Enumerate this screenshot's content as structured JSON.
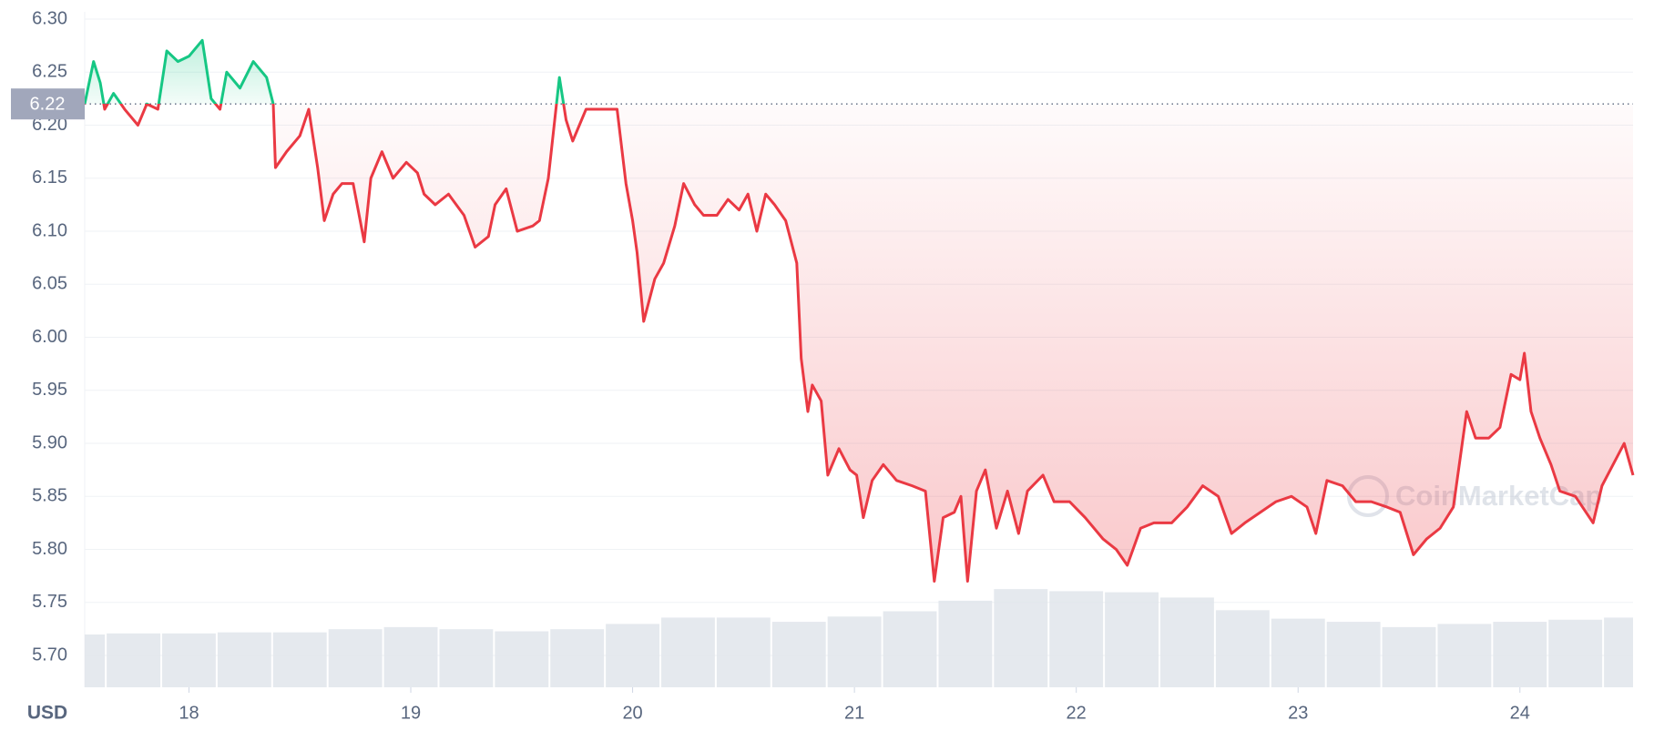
{
  "chart_data": {
    "type": "line",
    "y_label": "USD",
    "watermark": "CoinMarketCap",
    "baseline": 6.22,
    "color_up": "#16c784",
    "color_down": "#ea3943",
    "grid": true,
    "xlim": [
      17.53,
      24.51
    ],
    "xticks": [
      18,
      19,
      20,
      21,
      22,
      23,
      24
    ],
    "ylim": [
      5.67,
      6.3
    ],
    "yticks": [
      {
        "value": 5.7,
        "label": "5.70"
      },
      5.75,
      {
        "value": 5.8,
        "label": "5.80"
      },
      5.85,
      {
        "value": 5.9,
        "label": "5.90"
      },
      5.95,
      {
        "value": 6,
        "label": "6.00"
      },
      6.05,
      {
        "value": 6.1,
        "label": "6.10"
      },
      6.15,
      {
        "value": 6.2,
        "label": "6.20"
      },
      6.25,
      {
        "value": 6.3,
        "label": "6.30"
      }
    ],
    "x": [
      17.53,
      17.57,
      17.6,
      17.62,
      17.66,
      17.71,
      17.77,
      17.81,
      17.86,
      17.9,
      17.95,
      18.0,
      18.06,
      18.1,
      18.14,
      18.17,
      18.23,
      18.29,
      18.35,
      18.38,
      18.39,
      18.44,
      18.5,
      18.54,
      18.58,
      18.61,
      18.65,
      18.69,
      18.74,
      18.79,
      18.82,
      18.87,
      18.92,
      18.98,
      19.03,
      19.06,
      19.11,
      19.17,
      19.24,
      19.29,
      19.35,
      19.38,
      19.43,
      19.48,
      19.55,
      19.58,
      19.62,
      19.67,
      19.7,
      19.73,
      19.79,
      19.86,
      19.93,
      19.97,
      20.0,
      20.02,
      20.05,
      20.1,
      20.14,
      20.19,
      20.23,
      20.28,
      20.32,
      20.38,
      20.43,
      20.48,
      20.52,
      20.56,
      20.6,
      20.64,
      20.69,
      20.74,
      20.76,
      20.79,
      20.81,
      20.85,
      20.88,
      20.93,
      20.98,
      21.01,
      21.04,
      21.08,
      21.13,
      21.19,
      21.26,
      21.32,
      21.36,
      21.4,
      21.45,
      21.48,
      21.51,
      21.55,
      21.59,
      21.64,
      21.69,
      21.74,
      21.78,
      21.85,
      21.9,
      21.97,
      22.04,
      22.12,
      22.18,
      22.23,
      22.29,
      22.35,
      22.43,
      22.5,
      22.57,
      22.64,
      22.7,
      22.76,
      22.83,
      22.9,
      22.97,
      23.04,
      23.08,
      23.13,
      23.2,
      23.26,
      23.33,
      23.4,
      23.46,
      23.52,
      23.58,
      23.64,
      23.7,
      23.76,
      23.8,
      23.86,
      23.91,
      23.96,
      24.0,
      24.02,
      24.05,
      24.09,
      24.14,
      24.18,
      24.25,
      24.33,
      24.37,
      24.42,
      24.47,
      24.51
    ],
    "values": [
      6.22,
      6.26,
      6.24,
      6.215,
      6.23,
      6.215,
      6.2,
      6.22,
      6.215,
      6.27,
      6.26,
      6.265,
      6.28,
      6.225,
      6.215,
      6.25,
      6.235,
      6.26,
      6.245,
      6.22,
      6.16,
      6.175,
      6.19,
      6.215,
      6.16,
      6.11,
      6.135,
      6.145,
      6.145,
      6.09,
      6.15,
      6.175,
      6.15,
      6.165,
      6.155,
      6.135,
      6.125,
      6.135,
      6.115,
      6.085,
      6.095,
      6.125,
      6.14,
      6.1,
      6.105,
      6.11,
      6.15,
      6.245,
      6.205,
      6.185,
      6.215,
      6.215,
      6.215,
      6.145,
      6.11,
      6.08,
      6.015,
      6.055,
      6.07,
      6.105,
      6.145,
      6.125,
      6.115,
      6.115,
      6.13,
      6.12,
      6.135,
      6.1,
      6.135,
      6.125,
      6.11,
      6.07,
      5.98,
      5.93,
      5.955,
      5.94,
      5.87,
      5.895,
      5.875,
      5.87,
      5.83,
      5.865,
      5.88,
      5.865,
      5.86,
      5.855,
      5.77,
      5.83,
      5.835,
      5.85,
      5.77,
      5.855,
      5.875,
      5.82,
      5.855,
      5.815,
      5.855,
      5.87,
      5.845,
      5.845,
      5.83,
      5.81,
      5.8,
      5.785,
      5.82,
      5.825,
      5.825,
      5.84,
      5.86,
      5.85,
      5.815,
      5.825,
      5.835,
      5.845,
      5.85,
      5.84,
      5.815,
      5.865,
      5.86,
      5.845,
      5.845,
      5.84,
      5.835,
      5.795,
      5.81,
      5.82,
      5.84,
      5.93,
      5.905,
      5.905,
      5.915,
      5.965,
      5.96,
      5.985,
      5.93,
      5.905,
      5.88,
      5.855,
      5.85,
      5.825,
      5.86,
      5.88,
      5.9,
      5.87
    ],
    "volume": {
      "color": "#dfe3ea",
      "ylim": [
        0,
        100
      ],
      "x": [
        17.5,
        17.75,
        18,
        18.25,
        18.5,
        18.75,
        19,
        19.25,
        19.5,
        19.75,
        20,
        20.25,
        20.5,
        20.75,
        21,
        21.25,
        21.5,
        21.75,
        22,
        22.25,
        22.5,
        22.75,
        23,
        23.25,
        23.5,
        23.75,
        24,
        24.25,
        24.5
      ],
      "values": [
        50,
        51,
        51,
        52,
        52,
        55,
        57,
        55,
        53,
        55,
        60,
        66,
        66,
        62,
        67,
        72,
        82,
        93,
        91,
        90,
        85,
        73,
        65,
        62,
        57,
        60,
        62,
        64,
        66
      ]
    }
  }
}
